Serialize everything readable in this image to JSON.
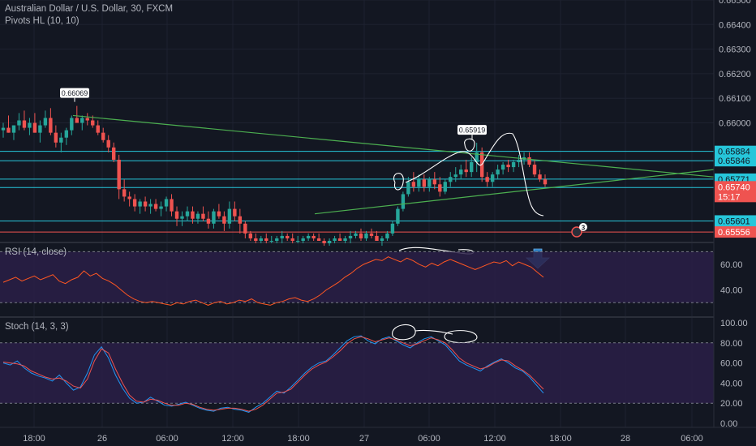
{
  "header": {
    "symbol_title": "Australian Dollar / U.S. Dollar, 30, FXCM",
    "indicator_label": "Pivots HL (10, 10)"
  },
  "colors": {
    "background": "#131722",
    "up": "#26a69a",
    "down": "#ef5350",
    "trendline": "#4caf50",
    "level": "#26c6da",
    "indicator_band": "#2a1f47",
    "rsi_line": "#ff5722",
    "stoch_k": "#2196f3",
    "stoch_d": "#ef5350",
    "axis_text": "#b2b5be"
  },
  "chart_data": [
    {
      "type": "candlestick",
      "symbol": "AUDUSD",
      "interval": "30",
      "y_ticks": [
        "0.66500",
        "0.66400",
        "0.66300",
        "0.66200",
        "0.66100",
        "0.66000"
      ],
      "ylim": [
        0.6552,
        0.665
      ],
      "x_ticks": [
        "18:00",
        "26",
        "06:00",
        "12:00",
        "18:00",
        "27",
        "06:00",
        "12:00",
        "18:00",
        "28",
        "06:00"
      ],
      "candles_ohlc": [
        [
          0.6597,
          0.66,
          0.6594,
          0.6598
        ],
        [
          0.6598,
          0.6603,
          0.6596,
          0.6596
        ],
        [
          0.6596,
          0.6599,
          0.6593,
          0.6599
        ],
        [
          0.6599,
          0.6604,
          0.6597,
          0.6601
        ],
        [
          0.6601,
          0.6605,
          0.6597,
          0.6598
        ],
        [
          0.6598,
          0.6602,
          0.6595,
          0.66
        ],
        [
          0.66,
          0.6604,
          0.6596,
          0.6596
        ],
        [
          0.6596,
          0.6601,
          0.6592,
          0.6599
        ],
        [
          0.6599,
          0.6605,
          0.6598,
          0.6602
        ],
        [
          0.6602,
          0.6606,
          0.6595,
          0.6596
        ],
        [
          0.6596,
          0.6599,
          0.659,
          0.6592
        ],
        [
          0.6592,
          0.6596,
          0.6588,
          0.6594
        ],
        [
          0.6594,
          0.6598,
          0.6591,
          0.6597
        ],
        [
          0.6597,
          0.6603,
          0.6595,
          0.6602
        ],
        [
          0.6602,
          0.66069,
          0.66,
          0.66
        ],
        [
          0.66,
          0.6603,
          0.6597,
          0.6602
        ],
        [
          0.6602,
          0.6604,
          0.6599,
          0.6601
        ],
        [
          0.6601,
          0.6603,
          0.6598,
          0.6599
        ],
        [
          0.6599,
          0.6601,
          0.6595,
          0.6596
        ],
        [
          0.6596,
          0.6598,
          0.6592,
          0.6593
        ],
        [
          0.6593,
          0.6595,
          0.6588,
          0.659
        ],
        [
          0.659,
          0.6592,
          0.6584,
          0.6585
        ],
        [
          0.6585,
          0.6587,
          0.6569,
          0.6573
        ],
        [
          0.6573,
          0.6577,
          0.6568,
          0.657
        ],
        [
          0.657,
          0.6572,
          0.6566,
          0.6569
        ],
        [
          0.6569,
          0.6571,
          0.6564,
          0.6566
        ],
        [
          0.6566,
          0.6569,
          0.6563,
          0.6568
        ],
        [
          0.6568,
          0.657,
          0.6564,
          0.6566
        ],
        [
          0.6566,
          0.6569,
          0.6563,
          0.6567
        ],
        [
          0.6567,
          0.6569,
          0.6564,
          0.6565
        ],
        [
          0.6565,
          0.6568,
          0.6562,
          0.6566
        ],
        [
          0.6566,
          0.657,
          0.6564,
          0.6569
        ],
        [
          0.6569,
          0.6571,
          0.6562,
          0.6564
        ],
        [
          0.6564,
          0.6566,
          0.6558,
          0.6561
        ],
        [
          0.6561,
          0.6564,
          0.6558,
          0.6562
        ],
        [
          0.6562,
          0.6566,
          0.656,
          0.6564
        ],
        [
          0.6564,
          0.6566,
          0.6559,
          0.6561
        ],
        [
          0.6561,
          0.6564,
          0.6559,
          0.6563
        ],
        [
          0.6563,
          0.6566,
          0.656,
          0.6561
        ],
        [
          0.6561,
          0.6564,
          0.6557,
          0.6559
        ],
        [
          0.6559,
          0.6565,
          0.6557,
          0.6564
        ],
        [
          0.6564,
          0.6567,
          0.6561,
          0.6562
        ],
        [
          0.6562,
          0.6564,
          0.6556,
          0.6559
        ],
        [
          0.6559,
          0.6568,
          0.6557,
          0.6565
        ],
        [
          0.6565,
          0.6568,
          0.656,
          0.6562
        ],
        [
          0.6562,
          0.6565,
          0.6555,
          0.6559
        ],
        [
          0.6559,
          0.656,
          0.6553,
          0.6555
        ],
        [
          0.6555,
          0.6556,
          0.6552,
          0.6553
        ],
        [
          0.6553,
          0.6555,
          0.6551,
          0.6552
        ],
        [
          0.6552,
          0.6554,
          0.6551,
          0.6553
        ],
        [
          0.6553,
          0.6555,
          0.6551,
          0.6552
        ],
        [
          0.6552,
          0.6554,
          0.6551,
          0.6552
        ],
        [
          0.6552,
          0.6554,
          0.6551,
          0.6553
        ],
        [
          0.6553,
          0.6556,
          0.6551,
          0.6554
        ],
        [
          0.6554,
          0.6555,
          0.6552,
          0.6553
        ],
        [
          0.6553,
          0.6555,
          0.6551,
          0.6552
        ],
        [
          0.6552,
          0.6554,
          0.6551,
          0.6552
        ],
        [
          0.6552,
          0.6554,
          0.6551,
          0.6553
        ],
        [
          0.6553,
          0.6555,
          0.6552,
          0.6554
        ],
        [
          0.6554,
          0.6555,
          0.6552,
          0.6553
        ],
        [
          0.6553,
          0.6555,
          0.6552,
          0.6552
        ],
        [
          0.6552,
          0.6553,
          0.655,
          0.6551
        ],
        [
          0.6551,
          0.6553,
          0.655,
          0.6552
        ],
        [
          0.6552,
          0.6554,
          0.6551,
          0.6553
        ],
        [
          0.6553,
          0.6555,
          0.6552,
          0.6552
        ],
        [
          0.6552,
          0.6554,
          0.6551,
          0.6553
        ],
        [
          0.6553,
          0.6556,
          0.6551,
          0.6554
        ],
        [
          0.6554,
          0.6556,
          0.6553,
          0.6555
        ],
        [
          0.6555,
          0.6557,
          0.6552,
          0.6553
        ],
        [
          0.6553,
          0.6556,
          0.6552,
          0.6555
        ],
        [
          0.6555,
          0.6557,
          0.6553,
          0.6554
        ],
        [
          0.6554,
          0.6556,
          0.6552,
          0.6552
        ],
        [
          0.6552,
          0.6554,
          0.655,
          0.6553
        ],
        [
          0.6553,
          0.6556,
          0.6552,
          0.6555
        ],
        [
          0.6555,
          0.656,
          0.6554,
          0.6559
        ],
        [
          0.6559,
          0.6566,
          0.6558,
          0.6565
        ],
        [
          0.6565,
          0.6572,
          0.6564,
          0.6571
        ],
        [
          0.6571,
          0.6578,
          0.657,
          0.6576
        ],
        [
          0.6576,
          0.658,
          0.6572,
          0.6574
        ],
        [
          0.6574,
          0.6579,
          0.6572,
          0.6577
        ],
        [
          0.6577,
          0.6579,
          0.6572,
          0.6574
        ],
        [
          0.6574,
          0.6578,
          0.6572,
          0.6577
        ],
        [
          0.6577,
          0.658,
          0.6573,
          0.6575
        ],
        [
          0.6575,
          0.6578,
          0.657,
          0.6572
        ],
        [
          0.6572,
          0.6577,
          0.6571,
          0.6576
        ],
        [
          0.6576,
          0.658,
          0.6574,
          0.6578
        ],
        [
          0.6578,
          0.6582,
          0.6576,
          0.6579
        ],
        [
          0.6579,
          0.6583,
          0.6577,
          0.6581
        ],
        [
          0.6581,
          0.6585,
          0.6578,
          0.658
        ],
        [
          0.658,
          0.6586,
          0.6578,
          0.6584
        ],
        [
          0.6584,
          0.65919,
          0.658,
          0.6588
        ],
        [
          0.6588,
          0.659,
          0.6576,
          0.6578
        ],
        [
          0.6578,
          0.658,
          0.6574,
          0.6576
        ],
        [
          0.6576,
          0.658,
          0.6574,
          0.6579
        ],
        [
          0.6579,
          0.6583,
          0.6577,
          0.6581
        ],
        [
          0.6581,
          0.6584,
          0.6579,
          0.6583
        ],
        [
          0.6583,
          0.6585,
          0.658,
          0.6582
        ],
        [
          0.6582,
          0.6585,
          0.658,
          0.6584
        ],
        [
          0.6584,
          0.6587,
          0.6582,
          0.6585
        ],
        [
          0.6585,
          0.6588,
          0.6583,
          0.6586
        ],
        [
          0.6586,
          0.6588,
          0.6582,
          0.6583
        ],
        [
          0.6583,
          0.6585,
          0.6578,
          0.6579
        ],
        [
          0.6579,
          0.6581,
          0.6576,
          0.6577
        ],
        [
          0.6577,
          0.6579,
          0.6574,
          0.6575
        ]
      ],
      "price_levels": [
        "0.65884",
        "0.65846",
        "0.65771",
        "0.65737",
        "0.65601",
        "0.65556"
      ],
      "current_price": "0.65740",
      "countdown": "15:17",
      "pivot_labels": [
        "0.66069",
        "0.65919"
      ],
      "alert_badge": "3"
    },
    {
      "type": "line",
      "name": "RSI (14, close)",
      "y_ticks": [
        "60.00",
        "40.00"
      ],
      "ylim": [
        20,
        76
      ],
      "band": [
        30,
        70
      ],
      "values": [
        46,
        48,
        50,
        47,
        49,
        51,
        48,
        50,
        52,
        47,
        45,
        48,
        50,
        55,
        51,
        53,
        49,
        47,
        44,
        40,
        36,
        33,
        31,
        30,
        31,
        30,
        29,
        28,
        30,
        29,
        31,
        32,
        30,
        28,
        30,
        31,
        29,
        30,
        32,
        31,
        33,
        30,
        29,
        28,
        30,
        31,
        33,
        34,
        32,
        31,
        33,
        36,
        40,
        43,
        46,
        50,
        53,
        57,
        60,
        62,
        64,
        63,
        66,
        64,
        62,
        65,
        63,
        60,
        58,
        61,
        59,
        62,
        64,
        62,
        60,
        58,
        56,
        58,
        60,
        62,
        61,
        63,
        59,
        62,
        60,
        58,
        54,
        50
      ]
    },
    {
      "type": "line",
      "name": "Stoch (14, 3, 3)",
      "y_ticks": [
        "100.00",
        "80.00",
        "60.00",
        "40.00",
        "20.00",
        "0.00"
      ],
      "ylim": [
        -4,
        104
      ],
      "band": [
        20,
        80
      ],
      "series": [
        {
          "values": [
            60,
            58,
            62,
            55,
            50,
            47,
            45,
            42,
            48,
            40,
            33,
            36,
            50,
            68,
            76,
            65,
            48,
            35,
            25,
            20,
            21,
            26,
            22,
            18,
            17,
            19,
            21,
            18,
            15,
            13,
            12,
            15,
            16,
            14,
            13,
            11,
            16,
            20,
            26,
            32,
            30,
            36,
            43,
            50,
            56,
            60,
            62,
            68,
            75,
            82,
            86,
            87,
            82,
            79,
            84,
            86,
            82,
            78,
            75,
            80,
            84,
            86,
            82,
            78,
            70,
            62,
            58,
            55,
            52,
            57,
            61,
            64,
            60,
            55,
            52,
            46,
            38,
            30
          ]
        },
        {
          "values": [
            61,
            60,
            59,
            57,
            52,
            49,
            46,
            44,
            45,
            42,
            37,
            35,
            44,
            62,
            74,
            70,
            54,
            40,
            28,
            22,
            21,
            24,
            23,
            20,
            18,
            18,
            20,
            19,
            16,
            14,
            13,
            14,
            15,
            15,
            14,
            12,
            14,
            18,
            24,
            30,
            31,
            34,
            41,
            48,
            54,
            58,
            61,
            66,
            72,
            79,
            84,
            86,
            84,
            81,
            83,
            85,
            83,
            80,
            77,
            79,
            82,
            85,
            83,
            80,
            73,
            65,
            60,
            57,
            54,
            56,
            60,
            63,
            62,
            57,
            53,
            48,
            41,
            34
          ]
        }
      ]
    }
  ]
}
